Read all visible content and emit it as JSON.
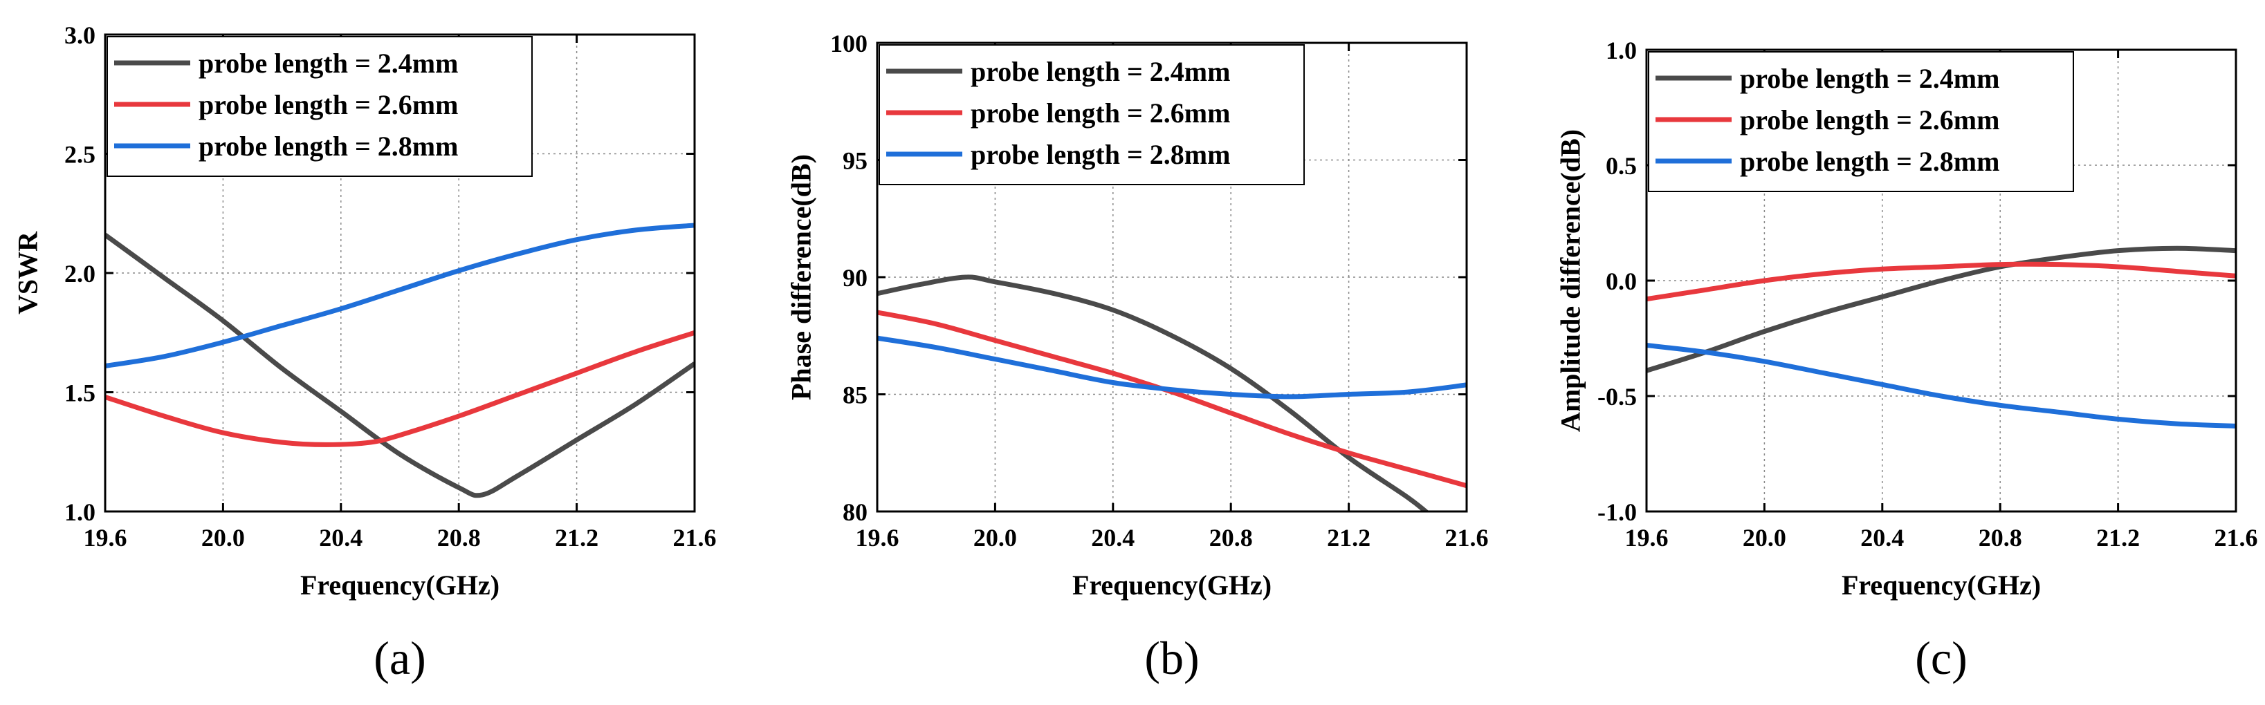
{
  "chart_data": [
    {
      "type": "line",
      "panel_label": "(a)",
      "xlabel": "Frequency(GHz)",
      "ylabel": "VSWR",
      "xlim": [
        19.6,
        21.6
      ],
      "ylim": [
        1.0,
        3.0
      ],
      "xticks": [
        "19.6",
        "20.0",
        "20.4",
        "20.8",
        "21.2",
        "21.6"
      ],
      "yticks": [
        "1.0",
        "1.5",
        "2.0",
        "2.5",
        "3.0"
      ],
      "grid": true,
      "legend_position": "top-left",
      "series": [
        {
          "name": "probe length = 2.4mm",
          "color": "#4a4a4a",
          "x": [
            19.6,
            19.8,
            20.0,
            20.2,
            20.4,
            20.6,
            20.8,
            20.88,
            21.0,
            21.2,
            21.4,
            21.6
          ],
          "y": [
            2.16,
            1.98,
            1.8,
            1.6,
            1.42,
            1.24,
            1.1,
            1.07,
            1.15,
            1.3,
            1.45,
            1.62
          ]
        },
        {
          "name": "probe length = 2.6mm",
          "color": "#e8383d",
          "x": [
            19.6,
            19.8,
            20.0,
            20.2,
            20.35,
            20.5,
            20.6,
            20.8,
            21.0,
            21.2,
            21.4,
            21.6
          ],
          "y": [
            1.48,
            1.4,
            1.33,
            1.29,
            1.28,
            1.29,
            1.32,
            1.4,
            1.49,
            1.58,
            1.67,
            1.75
          ]
        },
        {
          "name": "probe length = 2.8mm",
          "color": "#1f6fd9",
          "x": [
            19.6,
            19.8,
            20.0,
            20.2,
            20.4,
            20.6,
            20.8,
            21.0,
            21.2,
            21.4,
            21.6
          ],
          "y": [
            1.61,
            1.65,
            1.71,
            1.78,
            1.85,
            1.93,
            2.01,
            2.08,
            2.14,
            2.18,
            2.2
          ]
        }
      ]
    },
    {
      "type": "line",
      "panel_label": "(b)",
      "xlabel": "Frequency(GHz)",
      "ylabel": "Phase difference(dB)",
      "xlim": [
        19.6,
        21.6
      ],
      "ylim": [
        80,
        100
      ],
      "xticks": [
        "19.6",
        "20.0",
        "20.4",
        "20.8",
        "21.2",
        "21.6"
      ],
      "yticks": [
        "80",
        "85",
        "90",
        "95",
        "100"
      ],
      "grid": true,
      "legend_position": "top-left",
      "series": [
        {
          "name": "probe length = 2.4mm",
          "color": "#4a4a4a",
          "x": [
            19.6,
            19.75,
            19.9,
            20.0,
            20.2,
            20.4,
            20.6,
            20.8,
            21.0,
            21.2,
            21.4,
            21.48
          ],
          "y": [
            89.3,
            89.7,
            90.0,
            89.8,
            89.3,
            88.6,
            87.5,
            86.1,
            84.3,
            82.3,
            80.6,
            79.8
          ]
        },
        {
          "name": "probe length = 2.6mm",
          "color": "#e8383d",
          "x": [
            19.6,
            19.8,
            20.0,
            20.2,
            20.4,
            20.6,
            20.8,
            21.0,
            21.2,
            21.4,
            21.6
          ],
          "y": [
            88.5,
            88.0,
            87.3,
            86.6,
            85.9,
            85.1,
            84.2,
            83.3,
            82.5,
            81.8,
            81.1
          ]
        },
        {
          "name": "probe length = 2.8mm",
          "color": "#1f6fd9",
          "x": [
            19.6,
            19.8,
            20.0,
            20.2,
            20.4,
            20.6,
            20.8,
            21.0,
            21.2,
            21.4,
            21.6
          ],
          "y": [
            87.4,
            87.0,
            86.5,
            86.0,
            85.5,
            85.2,
            85.0,
            84.9,
            85.0,
            85.1,
            85.4
          ]
        }
      ]
    },
    {
      "type": "line",
      "panel_label": "(c)",
      "xlabel": "Frequency(GHz)",
      "ylabel": "Amplitude difference(dB)",
      "xlim": [
        19.6,
        21.6
      ],
      "ylim": [
        -1.0,
        1.0
      ],
      "xticks": [
        "19.6",
        "20.0",
        "20.4",
        "20.8",
        "21.2",
        "21.6"
      ],
      "yticks": [
        "-1.0",
        "-0.5",
        "0.0",
        "0.5",
        "1.0"
      ],
      "grid": true,
      "legend_position": "top-left",
      "series": [
        {
          "name": "probe length = 2.4mm",
          "color": "#4a4a4a",
          "x": [
            19.6,
            19.8,
            20.0,
            20.2,
            20.4,
            20.6,
            20.8,
            21.0,
            21.2,
            21.4,
            21.6
          ],
          "y": [
            -0.39,
            -0.31,
            -0.22,
            -0.14,
            -0.07,
            0.0,
            0.06,
            0.1,
            0.13,
            0.14,
            0.13
          ]
        },
        {
          "name": "probe length = 2.6mm",
          "color": "#e8383d",
          "x": [
            19.6,
            19.8,
            20.0,
            20.2,
            20.4,
            20.6,
            20.8,
            21.0,
            21.2,
            21.4,
            21.6
          ],
          "y": [
            -0.08,
            -0.04,
            0.0,
            0.03,
            0.05,
            0.06,
            0.07,
            0.07,
            0.06,
            0.04,
            0.02
          ]
        },
        {
          "name": "probe length = 2.8mm",
          "color": "#1f6fd9",
          "x": [
            19.6,
            19.8,
            20.0,
            20.2,
            20.4,
            20.6,
            20.8,
            21.0,
            21.2,
            21.4,
            21.6
          ],
          "y": [
            -0.28,
            -0.31,
            -0.35,
            -0.4,
            -0.45,
            -0.5,
            -0.54,
            -0.57,
            -0.6,
            -0.62,
            -0.63
          ]
        }
      ]
    }
  ]
}
